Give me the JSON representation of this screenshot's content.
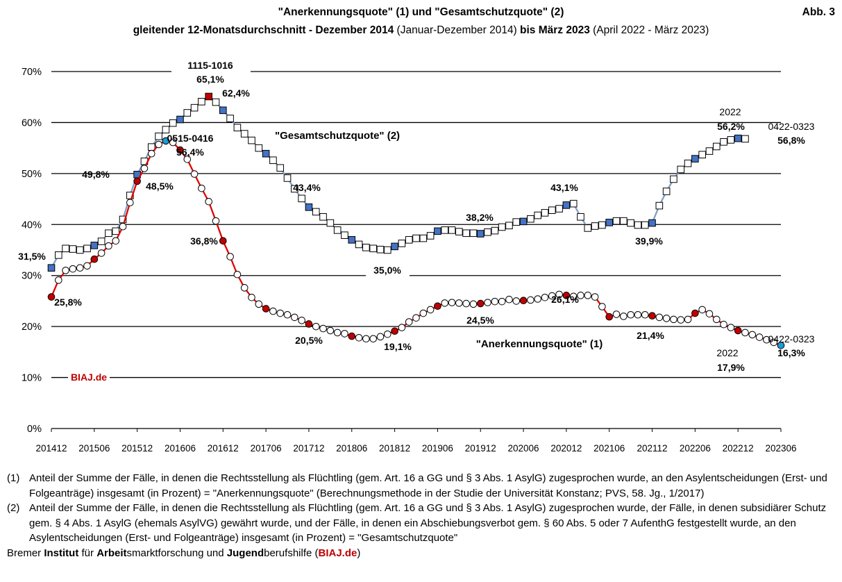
{
  "header": {
    "title": "\"Anerkennungsquote\" (1) und \"Gesamtschutzquote\" (2)",
    "abb": "Abb. 3",
    "subtitle_parts": [
      {
        "text": "gleitender 12-Monatsdurchschnitt - Dezember 2014",
        "bold": true
      },
      {
        "text": " (Januar-Dezember 2014) ",
        "bold": false
      },
      {
        "text": "bis März 2023",
        "bold": true
      },
      {
        "text": " (April 2022 - März 2023)",
        "bold": false
      }
    ]
  },
  "chart_data": {
    "type": "line",
    "ylim": [
      0,
      70
    ],
    "yticks": [
      "0%",
      "10%",
      "20%",
      "30%",
      "40%",
      "50%",
      "60%",
      "70%"
    ],
    "xticks": [
      "201412",
      "201506",
      "201512",
      "201606",
      "201612",
      "201706",
      "201712",
      "201806",
      "201812",
      "201906",
      "201912",
      "202006",
      "202012",
      "202106",
      "202112",
      "202206",
      "202212",
      "202306"
    ],
    "x_start": "2014-12",
    "x_end": "2023-06",
    "grid": true,
    "series": [
      {
        "name": "\"Gesamtschutzquote\" (2)",
        "marker": "square",
        "line_color": "#7f9fc4",
        "highlight_color": "#4472c4",
        "values": [
          31.5,
          34,
          35.3,
          35.2,
          35,
          35.3,
          35.9,
          36.7,
          38.3,
          38.7,
          41,
          45.7,
          49.8,
          52.4,
          55.2,
          57.3,
          58.6,
          59.9,
          60.6,
          61.9,
          62.9,
          64.1,
          65.1,
          64,
          62.4,
          60.8,
          59,
          57.8,
          56.5,
          55,
          53.9,
          52.6,
          51.1,
          49.1,
          47,
          45.1,
          43.4,
          42.5,
          41.5,
          40.3,
          38.9,
          37.9,
          37,
          36.1,
          35.5,
          35.3,
          35.1,
          35,
          35.7,
          36.3,
          37,
          37.3,
          37.3,
          37.8,
          38.7,
          38.9,
          38.9,
          38.6,
          38.3,
          38.3,
          38.2,
          38.5,
          38.8,
          39.5,
          39.8,
          40.5,
          40.6,
          41.1,
          41.8,
          42.3,
          42.8,
          43.1,
          43.8,
          44.1,
          41.5,
          39.3,
          39.7,
          39.9,
          40.4,
          40.7,
          40.7,
          40.3,
          39.9,
          39.9,
          40.3,
          43.7,
          46.5,
          48.9,
          50.8,
          52,
          52.9,
          53.7,
          54.4,
          55.3,
          56.2,
          56.6,
          56.9,
          56.8
        ],
        "highlight_indices": [
          0,
          6,
          12,
          18,
          24,
          30,
          36,
          42,
          48,
          54,
          60,
          66,
          72,
          78,
          84,
          90,
          96,
          102
        ],
        "red_indices": [
          22,
          102
        ]
      },
      {
        "name": "\"Anerkennungsquote\" (1)",
        "marker": "circle",
        "line_color": "#e00000",
        "highlight_color": "#c00000",
        "values": [
          25.8,
          29.1,
          31,
          31.3,
          31.5,
          31.9,
          33.2,
          34.4,
          35.8,
          36.8,
          39.6,
          44.3,
          48.5,
          51,
          53.9,
          55.7,
          56.4,
          56.1,
          54.6,
          52.8,
          49.9,
          47.1,
          44.5,
          40.7,
          36.8,
          33.7,
          30.2,
          27.6,
          25.7,
          24.4,
          23.5,
          23,
          22.6,
          22.3,
          21.8,
          21.2,
          20.5,
          20,
          19.6,
          19.2,
          18.8,
          18.6,
          18.1,
          17.8,
          17.6,
          17.6,
          18,
          18.5,
          19.1,
          19.8,
          20.9,
          21.7,
          22.6,
          23.3,
          24,
          24.6,
          24.7,
          24.6,
          24.5,
          24.4,
          24.5,
          24.7,
          24.9,
          24.9,
          25.3,
          25,
          25.1,
          25.2,
          25.4,
          25.7,
          26,
          26.3,
          26.1,
          25.9,
          26.1,
          26.1,
          25.8,
          23.9,
          21.9,
          22.4,
          22,
          22.3,
          22.3,
          22.3,
          22.1,
          21.8,
          21.6,
          21.4,
          21.3,
          21.4,
          22.6,
          23.3,
          22.5,
          21.4,
          20.4,
          19.8,
          19.2,
          18.8,
          18.4,
          17.9,
          17.4,
          16.9,
          16.3
        ],
        "highlight_indices": [
          0,
          6,
          12,
          18,
          24,
          30,
          36,
          42,
          48,
          54,
          60,
          66,
          72,
          78,
          84,
          90,
          96,
          102
        ],
        "blue_indices": [
          16,
          102
        ]
      }
    ],
    "annotations": [
      {
        "text": "31,5%"
      },
      {
        "text": "25,8%"
      },
      {
        "text": "49,8%"
      },
      {
        "text": "48,5%"
      },
      {
        "text": "1115-1016"
      },
      {
        "text": "65,1%"
      },
      {
        "text": "62,4%"
      },
      {
        "text": "0515-0416"
      },
      {
        "text": "56,4%"
      },
      {
        "text": "36,8%"
      },
      {
        "text": "\"Gesamtschutzquote\" (2)"
      },
      {
        "text": "43,4%"
      },
      {
        "text": "20,5%"
      },
      {
        "text": "35,0%"
      },
      {
        "text": "19,1%"
      },
      {
        "text": "38,2%"
      },
      {
        "text": "24,5%"
      },
      {
        "text": "43,1%"
      },
      {
        "text": "26,1%"
      },
      {
        "text": "\"Anerkennungsquote\" (1)"
      },
      {
        "text": "39,9%"
      },
      {
        "text": "21,4%"
      },
      {
        "text": "2022"
      },
      {
        "text": "56,2%"
      },
      {
        "text": "0422-0323"
      },
      {
        "text": "56,8%"
      },
      {
        "text": "0422-0323"
      },
      {
        "text": "16,3%"
      },
      {
        "text": "2022"
      },
      {
        "text": "17,9%"
      },
      {
        "text": "BIAJ.de"
      }
    ]
  },
  "footnotes": [
    {
      "num": "(1)",
      "text": "Anteil der Summe der Fälle, in denen die Rechtsstellung als Flüchtling (gem. Art. 16 a GG und § 3 Abs. 1 AsylG) zugesprochen wurde, an den Asylentscheidungen (Erst- und Folgeanträge) insgesamt (in Prozent) = \"Anerkennungsquote\" (Berechnungsmethode in der Studie der Universität Konstanz; PVS, 58. Jg., 1/2017)"
    },
    {
      "num": "(2)",
      "text": "Anteil der Summe der Fälle, in denen die Rechtsstellung als Flüchtling (gem. Art. 16 a GG und § 3 Abs. 1 AsylG) zugesprochen wurde, der Fälle, in denen subsidiärer Schutz gem. § 4 Abs. 1 AsylG (ehemals AsylVG) gewährt wurde, und der Fälle, in denen ein Abschiebungsverbot gem. § 60 Abs. 5 oder 7 AufenthG festgestellt wurde, an den Asylentscheidungen (Erst- und Folgeanträge) insgesamt (in Prozent) = \"Gesamtschutzquote\""
    }
  ],
  "footer": [
    {
      "text": "Bremer ",
      "style": "normal"
    },
    {
      "text": "Institut",
      "style": "bold"
    },
    {
      "text": " für ",
      "style": "normal"
    },
    {
      "text": "Arbeit",
      "style": "bold"
    },
    {
      "text": "smarktforschung und ",
      "style": "normal"
    },
    {
      "text": "Jugend",
      "style": "bold"
    },
    {
      "text": "berufshilfe (",
      "style": "normal"
    },
    {
      "text": "BIAJ.de",
      "style": "red"
    },
    {
      "text": ")",
      "style": "normal"
    }
  ],
  "colors": {
    "red": "#c00000",
    "blue": "#4472c4",
    "cyan": "#1e9bd7",
    "blue_line": "#7f9fc4",
    "red_line": "#e00000"
  }
}
